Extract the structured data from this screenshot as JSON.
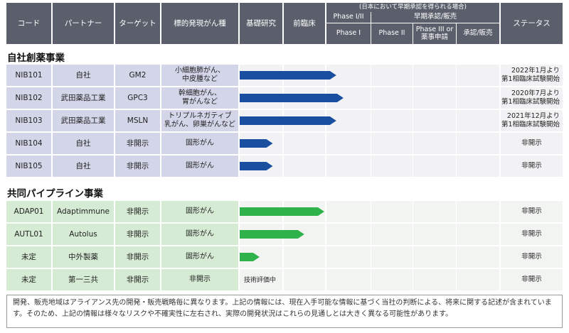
{
  "chart_data": {
    "type": "table",
    "header": {
      "code": "コード",
      "partner": "パートナー",
      "target": "ターゲット",
      "indication": "標的発現がん種",
      "basic_research": "基礎研究",
      "preclinical": "前臨床",
      "early_approval_note": "(日本において早期承認を得られる場合)",
      "phase1_2": "Phase I/II",
      "early_approval": "早期承認/販売",
      "phase1": "Phase I",
      "phase2": "Phase II",
      "phase3": "Phase III or\n薬事申請",
      "approval": "承認/販売",
      "status": "ステータス"
    },
    "stage_order": [
      "基礎研究",
      "前臨床",
      "Phase I",
      "Phase II",
      "Phase III or 薬事申請",
      "承認/販売"
    ],
    "sections": [
      {
        "title": "自社創薬事業",
        "color": "#1a4fa0",
        "rows": [
          {
            "code": "NIB101",
            "partner": "自社",
            "target": "GM2",
            "indication": "小細胞肺がん、\n中皮腫など",
            "progress": 2.22,
            "note": "",
            "status": "2022年1月より\n第1相臨床試験開始"
          },
          {
            "code": "NIB102",
            "partner": "武田薬品工業",
            "target": "GPC3",
            "indication": "幹細胞がん、\n胃がんなど",
            "progress": 2.38,
            "note": "",
            "status": "2020年7月より\n第1相臨床試験開始"
          },
          {
            "code": "NIB103",
            "partner": "武田薬品工業",
            "target": "MSLN",
            "indication": "トリプルネガティブ\n乳がん、卵巣がんなど",
            "progress": 2.22,
            "note": "",
            "status": "2021年12月より\n第1相臨床試験開始"
          },
          {
            "code": "NIB104",
            "partner": "自社",
            "target": "非開示",
            "indication": "固形がん",
            "progress": 0.75,
            "note": "",
            "status": "非開示"
          },
          {
            "code": "NIB105",
            "partner": "自社",
            "target": "非開示",
            "indication": "固形がん",
            "progress": 0.75,
            "note": "",
            "status": "非開示"
          }
        ]
      },
      {
        "title": "共同パイプライン事業",
        "color": "#2fb24a",
        "rows": [
          {
            "code": "ADAP01",
            "partner": "Adaptimmune",
            "target": "非開示",
            "indication": "固形がん",
            "progress": 1.95,
            "note": "",
            "status": "非開示"
          },
          {
            "code": "AUTL01",
            "partner": "Autolus",
            "target": "非開示",
            "indication": "固形がん",
            "progress": 1.48,
            "note": "",
            "status": "非開示"
          },
          {
            "code": "未定",
            "partner": "中外製薬",
            "target": "非開示",
            "indication": "固形がん",
            "progress": 0.45,
            "note": "",
            "status": "非開示"
          },
          {
            "code": "未定",
            "partner": "第一三共",
            "target": "非開示",
            "indication": "非開示",
            "progress": 0,
            "note": "技術評価中",
            "status": "非開示"
          }
        ]
      }
    ]
  },
  "footnote": "開発、販売地域はアライアンス先の開発・販売戦略毎に異なります。上記の情報には、現在入手可能な情報に基づく当社の判断による、将来に関する記述が含まれています。そのため、上記の情報は様々なリスクや不確実性に左右され、実際の開発状況はこれらの見通しとは大きく異なる可能性があります。"
}
